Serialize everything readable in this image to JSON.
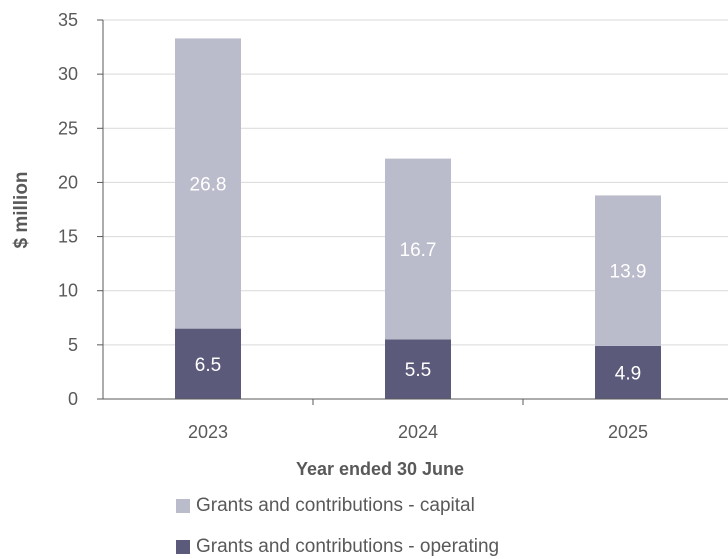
{
  "chart_data": {
    "type": "bar",
    "stacked": true,
    "categories": [
      "2023",
      "2024",
      "2025"
    ],
    "series": [
      {
        "name": "Grants and contributions - operating",
        "values": [
          6.5,
          5.5,
          4.9
        ],
        "color": "#5b5a7a",
        "label_color": "#ffffff"
      },
      {
        "name": "Grants and contributions - capital",
        "values": [
          26.8,
          16.7,
          13.9
        ],
        "color": "#babbcb",
        "label_color": "#ffffff"
      }
    ],
    "title": "",
    "xlabel": "Year ended 30 June",
    "ylabel": "$ million",
    "ylim": [
      0,
      35
    ],
    "yticks": [
      0,
      5,
      10,
      15,
      20,
      25,
      30,
      35
    ],
    "grid": true,
    "legend_position": "bottom",
    "gridline_color": "#d9d9d9",
    "axis_color": "#595959"
  },
  "legend": {
    "items": [
      {
        "label": "Grants and contributions - capital",
        "color": "#babbcb"
      },
      {
        "label": "Grants and contributions - operating",
        "color": "#5b5a7a"
      }
    ]
  }
}
